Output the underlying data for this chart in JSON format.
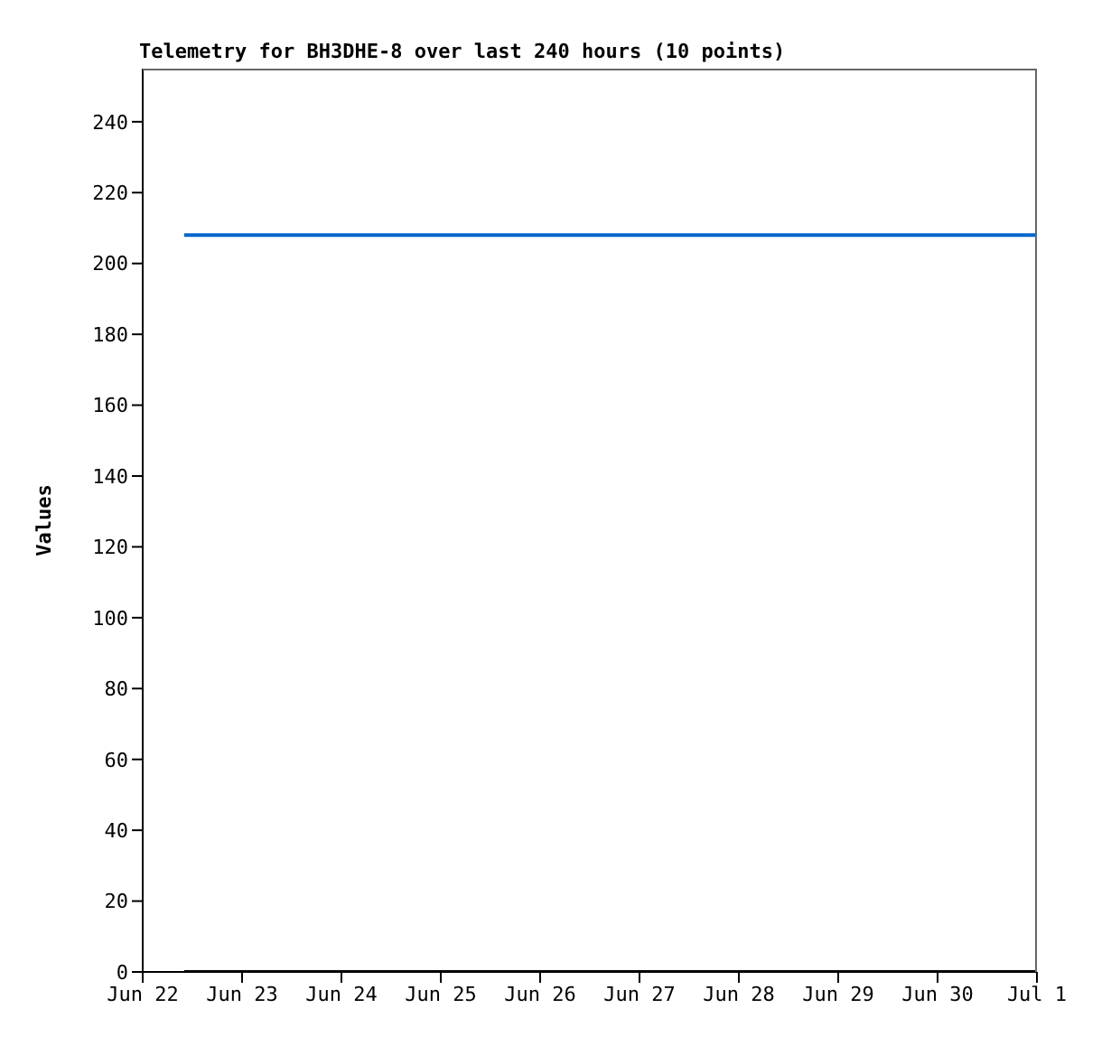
{
  "chart_data": {
    "type": "line",
    "title": "Telemetry for BH3DHE-8 over last 240 hours (10 points)",
    "ylabel": "Values",
    "x": [
      "--06-22T10:00",
      "--06-23T09:00",
      "--06-24T08:00",
      "--06-25T07:00",
      "--06-26T06:00",
      "--06-27T05:00",
      "--06-28T04:00",
      "--06-29T03:00",
      "--06-30T02:00",
      "--06-30T23:45"
    ],
    "series": [
      {
        "color": "#0066cc",
        "values": [
          208,
          208,
          208,
          208,
          208,
          208,
          208,
          208,
          208,
          208
        ]
      },
      {
        "color": "#000000",
        "values": [
          0,
          0,
          0,
          0,
          0,
          0,
          0,
          0,
          0,
          0
        ]
      }
    ],
    "xlim": [
      "--06-22",
      "--07-01"
    ],
    "xticks": [
      {
        "value": "--06-22",
        "label": "Jun 22"
      },
      {
        "value": "--06-23",
        "label": "Jun 23"
      },
      {
        "value": "--06-24",
        "label": "Jun 24"
      },
      {
        "value": "--06-25",
        "label": "Jun 25"
      },
      {
        "value": "--06-26",
        "label": "Jun 26"
      },
      {
        "value": "--06-27",
        "label": "Jun 27"
      },
      {
        "value": "--06-28",
        "label": "Jun 28"
      },
      {
        "value": "--06-29",
        "label": "Jun 29"
      },
      {
        "value": "--06-30",
        "label": "Jun 30"
      },
      {
        "value": "--07-01",
        "label": "Jul 1"
      }
    ],
    "ylim": [
      0,
      255
    ],
    "yticks": [
      0,
      20,
      40,
      60,
      80,
      100,
      120,
      140,
      160,
      180,
      200,
      220,
      240
    ],
    "marker": "none",
    "line_style": "solid"
  }
}
